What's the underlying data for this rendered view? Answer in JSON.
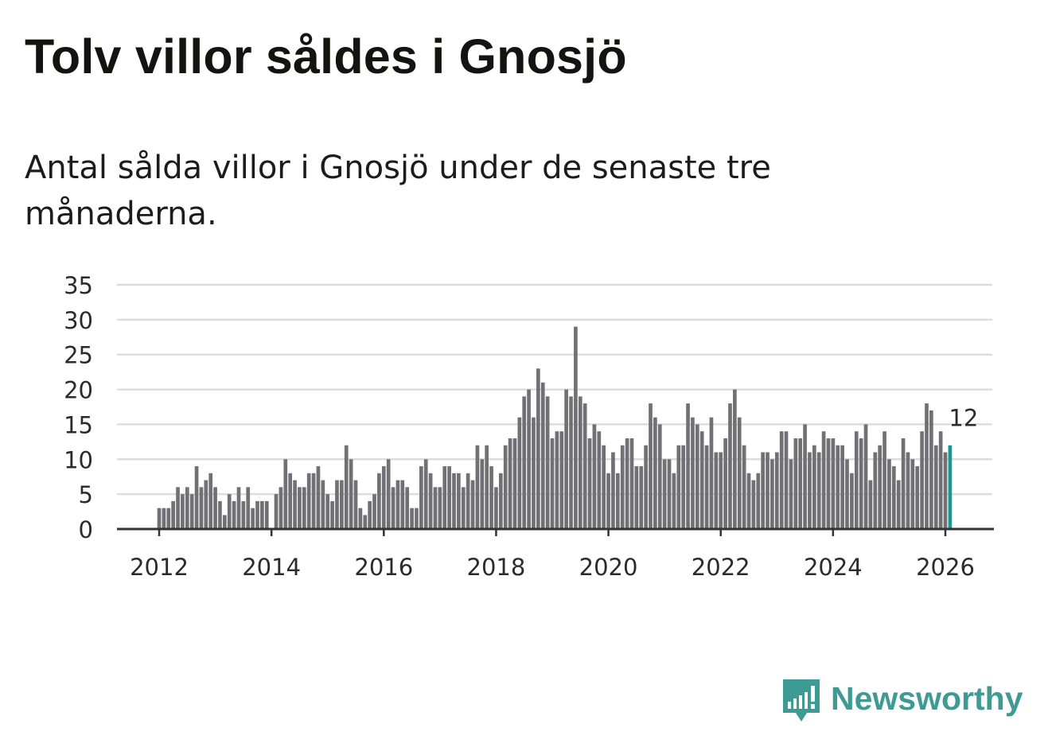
{
  "title": "Tolv villor såldes i Gnosjö",
  "subtitle": "Antal sålda villor i Gnosjö under de senaste tre månaderna.",
  "brand": {
    "name": "Newsworthy",
    "icon": "newsworthy-logo-icon",
    "color": "#3e9b94"
  },
  "colors": {
    "bar": "#707075",
    "highlight": "#1a9a8f",
    "grid": "#dddddd",
    "axis": "#333333"
  },
  "chart_data": {
    "type": "bar",
    "title": "Antal sålda villor i Gnosjö under de senaste tre månaderna.",
    "xlabel": "",
    "ylabel": "",
    "ylim": [
      0,
      35
    ],
    "yticks": [
      0,
      5,
      10,
      15,
      20,
      25,
      30,
      35
    ],
    "xticks": [
      {
        "label": "2012",
        "value": 2012
      },
      {
        "label": "2014",
        "value": 2014
      },
      {
        "label": "2016",
        "value": 2016
      },
      {
        "label": "2018",
        "value": 2018
      },
      {
        "label": "2020",
        "value": 2020
      },
      {
        "label": "2022",
        "value": 2022
      },
      {
        "label": "2024",
        "value": 2024
      },
      {
        "label": "2026",
        "value": 2026
      }
    ],
    "start": {
      "year": 2012,
      "month": 1
    },
    "grid": true,
    "annotation": {
      "label": "12",
      "value": 12
    },
    "values": [
      3,
      3,
      3,
      4,
      6,
      5,
      6,
      5,
      9,
      6,
      7,
      8,
      6,
      4,
      2,
      5,
      4,
      6,
      4,
      6,
      3,
      4,
      4,
      4,
      0,
      5,
      6,
      10,
      8,
      7,
      6,
      6,
      8,
      8,
      9,
      7,
      5,
      4,
      7,
      7,
      12,
      10,
      7,
      3,
      2,
      4,
      5,
      8,
      9,
      10,
      6,
      7,
      7,
      6,
      3,
      3,
      9,
      10,
      8,
      6,
      6,
      9,
      9,
      8,
      8,
      6,
      8,
      7,
      12,
      10,
      12,
      9,
      6,
      8,
      12,
      13,
      13,
      16,
      19,
      20,
      16,
      23,
      21,
      19,
      13,
      14,
      14,
      20,
      19,
      29,
      19,
      18,
      13,
      15,
      14,
      12,
      8,
      11,
      8,
      12,
      13,
      13,
      9,
      9,
      12,
      18,
      16,
      15,
      10,
      10,
      8,
      12,
      12,
      18,
      16,
      15,
      14,
      12,
      16,
      11,
      11,
      13,
      18,
      20,
      16,
      12,
      8,
      7,
      8,
      11,
      11,
      10,
      11,
      14,
      14,
      10,
      13,
      13,
      15,
      11,
      12,
      11,
      14,
      13,
      13,
      12,
      12,
      10,
      8,
      14,
      13,
      15,
      7,
      11,
      12,
      14,
      10,
      9,
      7,
      13,
      11,
      10,
      9,
      14,
      18,
      17,
      12,
      14,
      11,
      12
    ]
  }
}
